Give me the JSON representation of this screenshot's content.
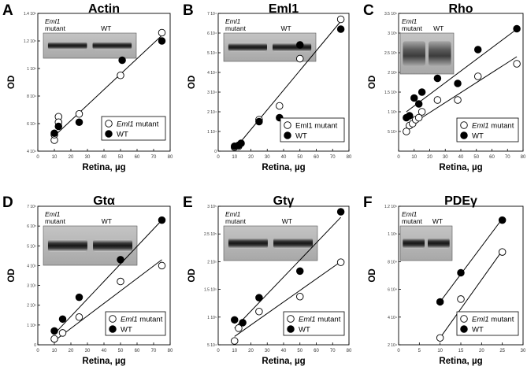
{
  "colors": {
    "ink": "#000000",
    "background": "#ffffff",
    "blot_band": "#1e1e1e",
    "blot_bg": "#9b9b9b"
  },
  "chart_data": [
    {
      "panel": "A",
      "title": "Actin",
      "type": "scatter",
      "xlabel": "Retina, µg",
      "ylabel": "OD",
      "xlim": [
        0,
        80
      ],
      "ylim": [
        40000,
        140000
      ],
      "xticks": [
        "0",
        "10",
        "20",
        "30",
        "40",
        "50",
        "60",
        "70",
        "80"
      ],
      "yticks": [
        {
          "v": 40000,
          "label": "4 10⁴"
        },
        {
          "v": 60000,
          "label": "6 10⁴"
        },
        {
          "v": 80000,
          "label": "8 10⁴"
        },
        {
          "v": 100000,
          "label": "1 10⁵"
        },
        {
          "v": 120000,
          "label": "1.2 10⁵"
        },
        {
          "v": 140000,
          "label": "1.4 10⁵"
        }
      ],
      "blot": "even",
      "inset_labels": {
        "mutant_italic": "Eml1",
        "mutant": "mutant",
        "wt": "WT"
      },
      "legend": [
        {
          "italic": "Eml1",
          "text": " mutant",
          "marker": "open"
        },
        {
          "italic": "",
          "text": "WT",
          "marker": "filled"
        }
      ],
      "series": [
        {
          "name": "Eml1 mutant",
          "marker": "open",
          "points": [
            [
              10,
              48000
            ],
            [
              10,
              52000
            ],
            [
              12.5,
              65000
            ],
            [
              12.5,
              61000
            ],
            [
              25,
              67000
            ],
            [
              50,
              95000
            ],
            [
              75,
              126000
            ]
          ]
        },
        {
          "name": "WT",
          "marker": "filled",
          "points": [
            [
              10,
              53000
            ],
            [
              12.5,
              58000
            ],
            [
              25,
              61000
            ],
            [
              51,
              106000
            ],
            [
              75,
              120000
            ]
          ]
        }
      ],
      "fit_lines": [
        {
          "from": [
            10,
            51000
          ],
          "to": [
            75,
            124000
          ]
        }
      ]
    },
    {
      "panel": "B",
      "title": "Eml1",
      "type": "scatter",
      "xlabel": "Retina, µg",
      "ylabel": "OD",
      "xlim": [
        0,
        80
      ],
      "ylim": [
        0,
        70000
      ],
      "xticks": [
        "0",
        "10",
        "20",
        "30",
        "40",
        "50",
        "60",
        "70",
        "80"
      ],
      "yticks": [
        {
          "v": 0,
          "label": "0"
        },
        {
          "v": 10000,
          "label": "1 10⁴"
        },
        {
          "v": 20000,
          "label": "2 10⁴"
        },
        {
          "v": 30000,
          "label": "3 10⁴"
        },
        {
          "v": 40000,
          "label": "4 10⁴"
        },
        {
          "v": 50000,
          "label": "5 10⁴"
        },
        {
          "v": 60000,
          "label": "6 10⁴"
        },
        {
          "v": 70000,
          "label": "7 10⁴"
        }
      ],
      "blot": "even",
      "inset_labels": {
        "mutant_italic": "Eml1",
        "mutant": "mutant",
        "wt": "WT"
      },
      "legend": [
        {
          "italic": "",
          "text": "Eml1 mutant",
          "marker": "open"
        },
        {
          "italic": "",
          "text": "WT",
          "marker": "filled"
        }
      ],
      "series": [
        {
          "name": "Eml1 mutant",
          "marker": "open",
          "points": [
            [
              10,
              2000
            ],
            [
              12.5,
              2500
            ],
            [
              25,
              16000
            ],
            [
              37.5,
              23000
            ],
            [
              50,
              47000
            ],
            [
              75,
              67000
            ]
          ]
        },
        {
          "name": "WT",
          "marker": "filled",
          "points": [
            [
              10,
              2500
            ],
            [
              12.5,
              3000
            ],
            [
              14,
              4000
            ],
            [
              25,
              15000
            ],
            [
              37.5,
              17000
            ],
            [
              50,
              54000
            ],
            [
              75,
              62000
            ]
          ]
        }
      ],
      "fit_lines": [
        {
          "from": [
            10,
            1000
          ],
          "to": [
            75,
            66000
          ]
        }
      ]
    },
    {
      "panel": "C",
      "title": "Rho",
      "type": "scatter",
      "xlabel": "Retina, µg",
      "ylabel": "OD",
      "xlim": [
        0,
        80
      ],
      "ylim": [
        0,
        350000
      ],
      "xticks": [
        "0",
        "10",
        "20",
        "30",
        "40",
        "50",
        "60",
        "70",
        "80"
      ],
      "yticks": [
        {
          "v": 50000,
          "label": "5 10⁴"
        },
        {
          "v": 100000,
          "label": "1 10⁵"
        },
        {
          "v": 150000,
          "label": "1.5 10⁵"
        },
        {
          "v": 200000,
          "label": "2 10⁵"
        },
        {
          "v": 250000,
          "label": "2.5 10⁵"
        },
        {
          "v": 300000,
          "label": "3 10⁵"
        },
        {
          "v": 350000,
          "label": "3.5 10⁵"
        }
      ],
      "blot": "smear",
      "inset_labels": {
        "mutant_italic": "Eml1",
        "mutant": "mutant",
        "wt": "WT"
      },
      "legend": [
        {
          "italic": "Eml1",
          "text": " mutant",
          "marker": "open"
        },
        {
          "italic": "",
          "text": "WT",
          "marker": "filled"
        }
      ],
      "series": [
        {
          "name": "Eml1 mutant",
          "marker": "open",
          "points": [
            [
              5,
              50000
            ],
            [
              7,
              65000
            ],
            [
              9,
              70000
            ],
            [
              11,
              80000
            ],
            [
              13,
              85000
            ],
            [
              15,
              100000
            ],
            [
              25,
              130000
            ],
            [
              38,
              130000
            ],
            [
              51,
              190000
            ],
            [
              76,
              222000
            ]
          ]
        },
        {
          "name": "WT",
          "marker": "filled",
          "points": [
            [
              5,
              85000
            ],
            [
              7,
              90000
            ],
            [
              10,
              135000
            ],
            [
              13,
              120000
            ],
            [
              15,
              150000
            ],
            [
              25,
              185000
            ],
            [
              38,
              172000
            ],
            [
              51,
              258000
            ],
            [
              76,
              311000
            ]
          ]
        }
      ],
      "fit_lines": [
        {
          "from": [
            5,
            60000
          ],
          "to": [
            76,
            240000
          ]
        },
        {
          "from": [
            5,
            100000
          ],
          "to": [
            76,
            310000
          ]
        }
      ]
    },
    {
      "panel": "D",
      "title": "Gtα",
      "type": "scatter",
      "xlabel": "Retina, µg",
      "ylabel": "OD",
      "xlim": [
        0,
        80
      ],
      "ylim": [
        0,
        700000
      ],
      "xticks": [
        "0",
        "10",
        "20",
        "30",
        "40",
        "50",
        "60",
        "70",
        "80"
      ],
      "yticks": [
        {
          "v": 0,
          "label": "0"
        },
        {
          "v": 100000,
          "label": "1 10⁵"
        },
        {
          "v": 200000,
          "label": "2 10⁵"
        },
        {
          "v": 300000,
          "label": "3 10⁵"
        },
        {
          "v": 400000,
          "label": "4 10⁵"
        },
        {
          "v": 500000,
          "label": "5 10⁵"
        },
        {
          "v": 600000,
          "label": "6 10⁵"
        },
        {
          "v": 700000,
          "label": "7 10⁵"
        }
      ],
      "blot": "even",
      "inset_labels": {
        "mutant_italic": "Eml1",
        "mutant": "mutant",
        "wt": "WT"
      },
      "legend": [
        {
          "italic": "Eml1",
          "text": " mutant",
          "marker": "open"
        },
        {
          "italic": "",
          "text": "WT",
          "marker": "filled"
        }
      ],
      "series": [
        {
          "name": "Eml1 mutant",
          "marker": "open",
          "points": [
            [
              10,
              30000
            ],
            [
              15,
              60000
            ],
            [
              25,
              140000
            ],
            [
              50,
              320000
            ],
            [
              75,
              400000
            ]
          ]
        },
        {
          "name": "WT",
          "marker": "filled",
          "points": [
            [
              10,
              70000
            ],
            [
              15,
              130000
            ],
            [
              25,
              240000
            ],
            [
              50,
              430000
            ],
            [
              75,
              630000
            ]
          ]
        }
      ],
      "fit_lines": [
        {
          "from": [
            10,
            20000
          ],
          "to": [
            75,
            430000
          ]
        },
        {
          "from": [
            10,
            55000
          ],
          "to": [
            75,
            630000
          ]
        }
      ]
    },
    {
      "panel": "E",
      "title": "Gtγ",
      "type": "scatter",
      "xlabel": "Retina, µg",
      "ylabel": "OD",
      "xlim": [
        0,
        80
      ],
      "ylim": [
        50000,
        300000
      ],
      "xticks": [
        "0",
        "10",
        "20",
        "30",
        "40",
        "50",
        "60",
        "70",
        "80"
      ],
      "yticks": [
        {
          "v": 50000,
          "label": "5 10⁴"
        },
        {
          "v": 100000,
          "label": "1 10⁵"
        },
        {
          "v": 150000,
          "label": "1.5 10⁵"
        },
        {
          "v": 200000,
          "label": "2 10⁵"
        },
        {
          "v": 250000,
          "label": "2.5 10⁵"
        },
        {
          "v": 300000,
          "label": "3 10⁵"
        }
      ],
      "blot": "even",
      "inset_labels": {
        "mutant_italic": "Eml1",
        "mutant": "mutant",
        "wt": "WT"
      },
      "legend": [
        {
          "italic": "Eml1",
          "text": " mutant",
          "marker": "open"
        },
        {
          "italic": "",
          "text": "WT",
          "marker": "filled"
        }
      ],
      "series": [
        {
          "name": "Eml1 mutant",
          "marker": "open",
          "points": [
            [
              10,
              57000
            ],
            [
              12.5,
              80000
            ],
            [
              25,
              110000
            ],
            [
              50,
              137000
            ],
            [
              75,
              199000
            ]
          ]
        },
        {
          "name": "WT",
          "marker": "filled",
          "points": [
            [
              10,
              95000
            ],
            [
              15,
              90000
            ],
            [
              25,
              135000
            ],
            [
              50,
              183000
            ],
            [
              75,
              290000
            ]
          ]
        }
      ],
      "fit_lines": [
        {
          "from": [
            10,
            65000
          ],
          "to": [
            75,
            200000
          ]
        },
        {
          "from": [
            10,
            80000
          ],
          "to": [
            75,
            280000
          ]
        }
      ]
    },
    {
      "panel": "F",
      "title": "PDEγ",
      "type": "scatter",
      "xlabel": "Retina, µg",
      "ylabel": "OD",
      "xlim": [
        0,
        30
      ],
      "ylim": [
        20000,
        120000
      ],
      "xticks": [
        "0",
        "5",
        "10",
        "15",
        "20",
        "25",
        "30"
      ],
      "yticks": [
        {
          "v": 20000,
          "label": "2 10⁴"
        },
        {
          "v": 40000,
          "label": "4 10⁴"
        },
        {
          "v": 60000,
          "label": "6 10⁴"
        },
        {
          "v": 80000,
          "label": "8 10⁴"
        },
        {
          "v": 100000,
          "label": "1 10⁵"
        },
        {
          "v": 120000,
          "label": "1.2 10⁵"
        }
      ],
      "blot": "even",
      "inset_labels": {
        "mutant_italic": "Eml1",
        "mutant": "mutant",
        "wt": "WT"
      },
      "legend": [
        {
          "italic": "Eml1",
          "text": " mutant",
          "marker": "open"
        },
        {
          "italic": "",
          "text": "WT",
          "marker": "filled"
        }
      ],
      "series": [
        {
          "name": "Eml1 mutant",
          "marker": "open",
          "points": [
            [
              10,
              25000
            ],
            [
              15,
              53000
            ],
            [
              25,
              87000
            ]
          ]
        },
        {
          "name": "WT",
          "marker": "filled",
          "points": [
            [
              10,
              51000
            ],
            [
              15,
              72000
            ],
            [
              25,
              110000
            ]
          ]
        }
      ],
      "fit_lines": [
        {
          "from": [
            10,
            25000
          ],
          "to": [
            25,
            88000
          ]
        },
        {
          "from": [
            10,
            51000
          ],
          "to": [
            25,
            111000
          ]
        }
      ]
    }
  ]
}
